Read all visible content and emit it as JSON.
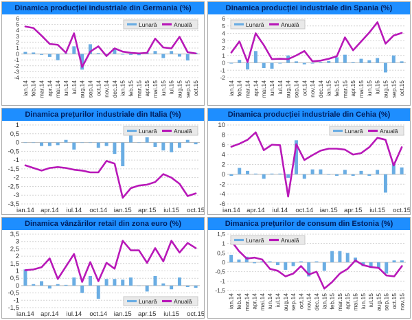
{
  "legend": {
    "monthly_label": "Lunară",
    "annual_label": "Anuală"
  },
  "colors": {
    "title_bar": "#1e8eff",
    "title_text": "#002060",
    "bar": "#6aade3",
    "line": "#b818b8",
    "grid": "#d4d4d4",
    "zero_line": "#bdbdbd",
    "axis_text": "#333333",
    "legend_bg": "#e9e9e9",
    "legend_border": "#c8c8c8",
    "panel_border": "#a9a9a9"
  },
  "chart_data": [
    {
      "type": "bar+line",
      "title": "Dinamica producției industriale din Germania (%)",
      "categories": [
        "ian.14",
        "feb.14",
        "mar.14",
        "apr.14",
        "mai.14",
        "iun.14",
        "iul.14",
        "aug.14",
        "sep.14",
        "oct.14",
        "nov.14",
        "dec.14",
        "ian.15",
        "feb.15",
        "mar.15",
        "apr.15",
        "mai.15",
        "iun.15",
        "iul.15",
        "aug.15",
        "sep.15",
        "oct.15"
      ],
      "series": [
        {
          "name": "Lunară",
          "type": "bar",
          "values": [
            0.35,
            0.25,
            -0.15,
            -0.5,
            -1.05,
            0.1,
            1.3,
            -2.65,
            1.65,
            0.15,
            -0.25,
            1.0,
            -0.1,
            -0.15,
            -0.2,
            0.25,
            0.5,
            -0.7,
            0.5,
            -0.45,
            -1.1,
            0.2
          ]
        },
        {
          "name": "Anuală",
          "type": "line",
          "values": [
            4.65,
            4.4,
            3.1,
            1.7,
            1.55,
            0.2,
            3.5,
            -2.2,
            0.4,
            1.3,
            -0.35,
            0.95,
            0.4,
            0.2,
            0.1,
            0.2,
            2.6,
            1.1,
            0.95,
            2.9,
            0.3,
            0.1
          ]
        }
      ],
      "ylim": [
        -4,
        6
      ],
      "ystep": 1,
      "grid": true,
      "legend_position": "top-right",
      "x_tick_mode": "all-rotated"
    },
    {
      "type": "bar+line",
      "title": "Dinamica producției industriale din Spania (%)",
      "categories": [
        "ian.14",
        "feb.14",
        "mar.14",
        "apr.14",
        "mai.14",
        "iun.14",
        "iul.14",
        "aug.14",
        "sep.14",
        "oct.14",
        "nov.14",
        "dec.14",
        "ian.15",
        "feb.15",
        "mar.15",
        "apr.15",
        "mai.15",
        "iun.15",
        "iul.15",
        "aug.15",
        "sep.15",
        "oct.15"
      ],
      "series": [
        {
          "name": "Lunară",
          "type": "bar",
          "values": [
            -0.1,
            0.4,
            -0.9,
            1.6,
            -0.7,
            -0.8,
            -0.1,
            1.0,
            0.2,
            -0.2,
            -0.1,
            0.1,
            0.25,
            0.75,
            1.1,
            0.1,
            0.55,
            0.35,
            0.65,
            -1.3,
            1.0,
            0.2
          ]
        },
        {
          "name": "Anuală",
          "type": "line",
          "values": [
            1.4,
            2.9,
            0.1,
            4.0,
            2.4,
            0.5,
            0.55,
            0.5,
            1.0,
            1.6,
            0.2,
            0.3,
            0.55,
            0.9,
            3.45,
            1.7,
            2.9,
            4.1,
            5.5,
            2.6,
            3.7,
            4.05
          ]
        }
      ],
      "ylim": [
        -2,
        6
      ],
      "ystep": 1,
      "grid": true,
      "legend_position": "top-left",
      "x_tick_mode": "all-rotated"
    },
    {
      "type": "bar+line",
      "title": "Dinamica prețurilor industriale din Italia (%)",
      "categories": [
        "ian.14",
        "feb.14",
        "mar.14",
        "apr.14",
        "mai.14",
        "iun.14",
        "iul.14",
        "aug.14",
        "sep.14",
        "oct.14",
        "nov.14",
        "dec.14",
        "ian.15",
        "feb.15",
        "mar.15",
        "apr.15",
        "mai.15",
        "iun.15",
        "iul.15",
        "aug.15",
        "sep.15",
        "oct.15"
      ],
      "series": [
        {
          "name": "Lunară",
          "type": "bar",
          "values": [
            0,
            0,
            -0.2,
            -0.2,
            -0.15,
            0.15,
            -0.4,
            0,
            0,
            -0.3,
            -0.2,
            -0.65,
            -1.35,
            0.6,
            0,
            0.3,
            -0.25,
            -0.45,
            -0.55,
            -0.3,
            0.15,
            -0.1
          ]
        },
        {
          "name": "Anuală",
          "type": "line",
          "values": [
            -1.3,
            -1.45,
            -1.6,
            -1.45,
            -1.4,
            -1.45,
            -1.55,
            -1.6,
            -1.7,
            -1.7,
            -1.05,
            -1.2,
            -3.15,
            -2.6,
            -2.45,
            -2.4,
            -2.25,
            -1.8,
            -2.0,
            -2.35,
            -3.05,
            -2.9
          ]
        }
      ],
      "ylim": [
        -3.5,
        1
      ],
      "ystep": 0.5,
      "grid": true,
      "legend_position": "top-right",
      "x_tick_mode": "every-3rd"
    },
    {
      "type": "bar+line",
      "title": "Dinamica producției industriale din Cehia (%)",
      "categories": [
        "ian.14",
        "feb.14",
        "mar.14",
        "apr.14",
        "mai.14",
        "iun.14",
        "iul.14",
        "aug.14",
        "sep.14",
        "oct.14",
        "nov.14",
        "dec.14",
        "ian.15",
        "feb.15",
        "mar.15",
        "apr.15",
        "mai.15",
        "iun.15",
        "iul.15",
        "aug.15",
        "sep.15",
        "oct.15"
      ],
      "series": [
        {
          "name": "Lunară",
          "type": "bar",
          "values": [
            -0.3,
            1.3,
            0.7,
            0.15,
            -0.9,
            0.15,
            0.15,
            -0.7,
            6.9,
            -0.9,
            1.0,
            1.0,
            -0.1,
            -0.3,
            0.9,
            -0.3,
            0.7,
            -0.3,
            0.9,
            -3.7,
            2.4,
            1.4
          ]
        },
        {
          "name": "Anuală",
          "type": "line",
          "values": [
            5.6,
            6.2,
            7.0,
            8.5,
            4.9,
            6.0,
            5.9,
            -4.5,
            6.1,
            2.9,
            3.9,
            4.8,
            5.2,
            5.2,
            5.0,
            4.0,
            4.3,
            5.5,
            7.4,
            7.0,
            1.8,
            5.5
          ]
        }
      ],
      "ylim": [
        -6,
        10
      ],
      "ystep": 2,
      "grid": true,
      "legend_position": "top-right",
      "x_tick_mode": "every-3rd"
    },
    {
      "type": "bar+line",
      "title": "Dinamica vânzărilor retail din zona euro (%)",
      "categories": [
        "ian.14",
        "feb.14",
        "mar.14",
        "apr.14",
        "mai.14",
        "iun.14",
        "iul.14",
        "aug.14",
        "sep.14",
        "oct.14",
        "nov.14",
        "dec.14",
        "ian.15",
        "feb.15",
        "mar.15",
        "apr.15",
        "mai.15",
        "iun.15",
        "iul.15",
        "aug.15",
        "sep.15",
        "oct.15"
      ],
      "series": [
        {
          "name": "Lunară",
          "type": "bar",
          "values": [
            1.1,
            0.1,
            0.3,
            -0.2,
            0.1,
            0.05,
            0.55,
            -0.5,
            0.65,
            -0.9,
            0.45,
            0.45,
            0.4,
            0.55,
            0,
            -0.4,
            0.65,
            0.15,
            -0.25,
            0.55,
            -0.1,
            -0.15
          ]
        },
        {
          "name": "Anuală",
          "type": "line",
          "values": [
            1.05,
            1.1,
            1.25,
            1.85,
            0.45,
            1.3,
            2.15,
            0.25,
            1.6,
            0.3,
            1.55,
            1.15,
            3.05,
            2.4,
            2.4,
            1.55,
            2.55,
            1.65,
            3.05,
            2.25,
            2.9,
            2.55
          ]
        }
      ],
      "ylim": [
        -1.5,
        3.5
      ],
      "ystep": 0.5,
      "grid": true,
      "legend_position": "bottom-right",
      "x_tick_mode": "every-3rd"
    },
    {
      "type": "bar+line",
      "title": "Dimanica prețurilor de consum din Estonia (%)",
      "categories": [
        "ian.14",
        "feb.14",
        "mar.14",
        "apr.14",
        "mai.14",
        "iun.14",
        "iul.14",
        "aug.14",
        "sep.14",
        "oct.14",
        "nov.14",
        "dec.14",
        "ian.15",
        "feb.15",
        "mar.15",
        "apr.15",
        "mai.15",
        "iun.15",
        "iul.15",
        "aug.15",
        "sep.15",
        "oct.15",
        "nov.15"
      ],
      "series": [
        {
          "name": "Lunară",
          "type": "bar",
          "values": [
            0.4,
            0.15,
            0.3,
            -0.05,
            0.05,
            0.05,
            -0.15,
            -0.4,
            -0.2,
            0.05,
            -0.75,
            0.05,
            -0.45,
            0.6,
            0.6,
            0.5,
            0.25,
            -0.2,
            -0.3,
            -0.3,
            -0.6,
            0.1,
            0.1
          ]
        },
        {
          "name": "Anuală",
          "type": "line",
          "values": [
            1.15,
            0.6,
            0.2,
            0.25,
            0.15,
            -0.35,
            -0.45,
            -0.75,
            -0.6,
            -0.2,
            -0.65,
            -0.5,
            -1.4,
            -1.05,
            -0.6,
            -0.35,
            0.1,
            -0.15,
            -0.25,
            -0.3,
            -0.7,
            -0.75,
            -0.2
          ]
        }
      ],
      "ylim": [
        -1.5,
        1.5
      ],
      "ystep": 0.5,
      "grid": true,
      "legend_position": "top-left",
      "x_tick_mode": "all-rotated"
    }
  ]
}
